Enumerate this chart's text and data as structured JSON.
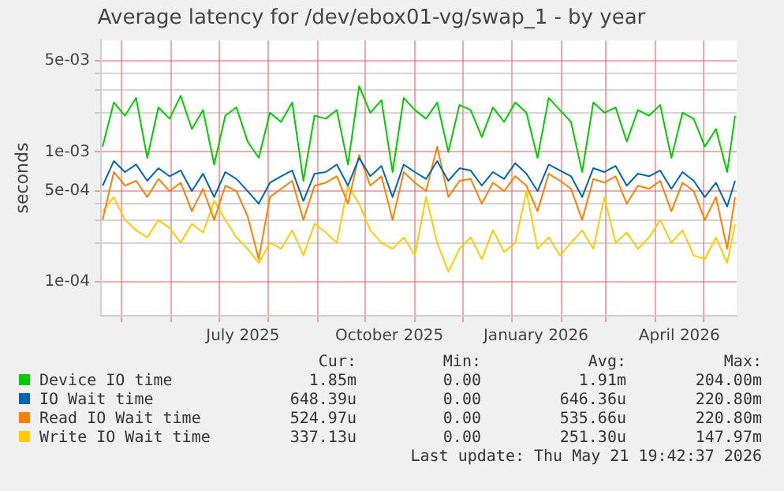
{
  "chart_data": {
    "type": "line",
    "title": "Average latency for /dev/ebox01-vg/swap_1 - by year",
    "ylabel": "seconds",
    "log": "y",
    "grid": true,
    "legend": "bottom",
    "x": [
      "2025-04-19",
      "2025-04-26",
      "2025-05-03",
      "2025-05-10",
      "2025-05-17",
      "2025-05-24",
      "2025-05-31",
      "2025-06-07",
      "2025-06-14",
      "2025-06-21",
      "2025-06-28",
      "2025-07-05",
      "2025-07-12",
      "2025-07-19",
      "2025-07-26",
      "2025-08-02",
      "2025-08-09",
      "2025-08-16",
      "2025-08-23",
      "2025-08-30",
      "2025-09-06",
      "2025-09-13",
      "2025-09-20",
      "2025-09-27",
      "2025-10-04",
      "2025-10-11",
      "2025-10-18",
      "2025-10-25",
      "2025-11-01",
      "2025-11-08",
      "2025-11-15",
      "2025-11-22",
      "2025-11-29",
      "2025-12-06",
      "2025-12-13",
      "2025-12-20",
      "2025-12-27",
      "2026-01-03",
      "2026-01-10",
      "2026-01-17",
      "2026-01-24",
      "2026-01-31",
      "2026-02-07",
      "2026-02-14",
      "2026-02-21",
      "2026-02-28",
      "2026-03-07",
      "2026-03-14",
      "2026-03-21",
      "2026-03-28",
      "2026-04-04",
      "2026-04-11",
      "2026-04-18",
      "2026-04-25",
      "2026-05-02",
      "2026-05-09",
      "2026-05-16",
      "2026-05-21"
    ],
    "xlim": [
      "2025-04-18",
      "2026-05-22"
    ],
    "xticks": [
      {
        "value": "2025-05-01",
        "label": null
      },
      {
        "value": "2025-06-01",
        "label": null
      },
      {
        "value": "2025-07-01",
        "label": null
      },
      {
        "value": "2025-07-16",
        "label": "July 2025"
      },
      {
        "value": "2025-08-01",
        "label": null
      },
      {
        "value": "2025-09-01",
        "label": null
      },
      {
        "value": "2025-10-01",
        "label": null
      },
      {
        "value": "2025-10-16",
        "label": "October 2025"
      },
      {
        "value": "2025-11-01",
        "label": null
      },
      {
        "value": "2025-12-01",
        "label": null
      },
      {
        "value": "2026-01-01",
        "label": null
      },
      {
        "value": "2026-01-16",
        "label": "January 2026"
      },
      {
        "value": "2026-02-01",
        "label": null
      },
      {
        "value": "2026-03-01",
        "label": null
      },
      {
        "value": "2026-04-01",
        "label": null
      },
      {
        "value": "2026-04-16",
        "label": "April 2026"
      },
      {
        "value": "2026-05-01",
        "label": null
      }
    ],
    "ylim": [
      5.5e-05,
      0.0072
    ],
    "yticks": [
      {
        "value": 0.0001,
        "label": "1e-04"
      },
      {
        "value": 0.0002,
        "label": null
      },
      {
        "value": 0.0003,
        "label": null
      },
      {
        "value": 0.0004,
        "label": null
      },
      {
        "value": 0.0005,
        "label": "5e-04"
      },
      {
        "value": 0.001,
        "label": "1e-03"
      },
      {
        "value": 0.002,
        "label": null
      },
      {
        "value": 0.003,
        "label": null
      },
      {
        "value": 0.004,
        "label": null
      },
      {
        "value": 0.005,
        "label": "5e-03"
      }
    ],
    "series": [
      {
        "name": "Device IO time",
        "color": "#00cc00",
        "values": [
          0.0011,
          0.0024,
          0.0019,
          0.0026,
          0.0009,
          0.0022,
          0.0018,
          0.0027,
          0.0015,
          0.0021,
          0.0008,
          0.0019,
          0.0022,
          0.0012,
          0.0009,
          0.002,
          0.0017,
          0.0024,
          0.0006,
          0.0019,
          0.0018,
          0.0021,
          0.0008,
          0.0032,
          0.002,
          0.0025,
          0.0007,
          0.0026,
          0.0021,
          0.0018,
          0.0024,
          0.001,
          0.0023,
          0.0021,
          0.0013,
          0.0022,
          0.0017,
          0.0024,
          0.002,
          0.0009,
          0.0026,
          0.0021,
          0.0017,
          0.0007,
          0.0024,
          0.002,
          0.0022,
          0.0012,
          0.0021,
          0.0019,
          0.0023,
          0.0009,
          0.002,
          0.0018,
          0.0011,
          0.0015,
          0.0007,
          0.0019
        ]
      },
      {
        "name": "IO Wait time",
        "color": "#0066b3",
        "values": [
          0.00055,
          0.00085,
          0.0007,
          0.0008,
          0.0006,
          0.00075,
          0.00065,
          0.00072,
          0.0005,
          0.00068,
          0.00045,
          0.0007,
          0.00062,
          0.0005,
          0.0004,
          0.00058,
          0.00065,
          0.00072,
          0.00042,
          0.00068,
          0.0007,
          0.0008,
          0.00055,
          0.0009,
          0.00065,
          0.00078,
          0.00045,
          0.0008,
          0.0007,
          0.00062,
          0.00085,
          0.0006,
          0.00075,
          0.00072,
          0.00055,
          0.0007,
          0.00062,
          0.00082,
          0.00068,
          0.0005,
          0.0008,
          0.00072,
          0.00065,
          0.00045,
          0.00075,
          0.0007,
          0.00078,
          0.00055,
          0.00068,
          0.00065,
          0.00072,
          0.00052,
          0.0007,
          0.0006,
          0.00045,
          0.00058,
          0.00038,
          0.0006
        ]
      },
      {
        "name": "Read IO Wait time",
        "color": "#ff8000",
        "values": [
          0.0003,
          0.0007,
          0.00055,
          0.0006,
          0.00045,
          0.00062,
          0.0005,
          0.00058,
          0.00035,
          0.00052,
          0.0003,
          0.00055,
          0.0005,
          0.00032,
          0.00015,
          0.00045,
          0.00052,
          0.0006,
          0.0003,
          0.00055,
          0.00058,
          0.00065,
          0.0004,
          0.00095,
          0.00055,
          0.00065,
          0.0003,
          0.0007,
          0.00058,
          0.0005,
          0.0011,
          0.00045,
          0.0006,
          0.00062,
          0.0004,
          0.00058,
          0.0005,
          0.00065,
          0.00055,
          0.00035,
          0.00068,
          0.0006,
          0.00052,
          0.0003,
          0.00062,
          0.00058,
          0.00065,
          0.0004,
          0.00055,
          0.00052,
          0.0006,
          0.00035,
          0.00058,
          0.0005,
          0.0003,
          0.00045,
          0.00018,
          0.00045
        ]
      },
      {
        "name": "Write IO Wait time",
        "color": "#ffcc00",
        "values": [
          0.00035,
          0.00045,
          0.0003,
          0.00025,
          0.00022,
          0.0003,
          0.00026,
          0.0002,
          0.00028,
          0.00024,
          0.00042,
          0.0003,
          0.00022,
          0.00018,
          0.00014,
          0.0002,
          0.00018,
          0.00025,
          0.00016,
          0.00028,
          0.00024,
          0.0002,
          0.00055,
          0.0004,
          0.00025,
          0.0002,
          0.00018,
          0.00022,
          0.00016,
          0.00045,
          0.0002,
          0.00012,
          0.00018,
          0.00022,
          0.00015,
          0.00025,
          0.00017,
          0.0002,
          0.0005,
          0.00018,
          0.00022,
          0.00016,
          0.0002,
          0.00025,
          0.00018,
          0.00045,
          0.0002,
          0.00024,
          0.00018,
          0.00022,
          0.0003,
          0.0002,
          0.00025,
          0.00016,
          0.00015,
          0.00022,
          0.00014,
          0.00028
        ]
      }
    ],
    "annotations": [
      "Cur:",
      "Min:",
      "Avg:",
      "Max:",
      "1.85m",
      "0.00",
      "1.91m",
      "204.00m",
      "648.39u",
      "0.00",
      "646.36u",
      "220.80m",
      "524.97u",
      "0.00",
      "535.66u",
      "220.80m",
      "337.13u",
      "0.00",
      "251.30u",
      "147.97m",
      "Last update: Thu May 21 19:42:37 2026"
    ]
  }
}
